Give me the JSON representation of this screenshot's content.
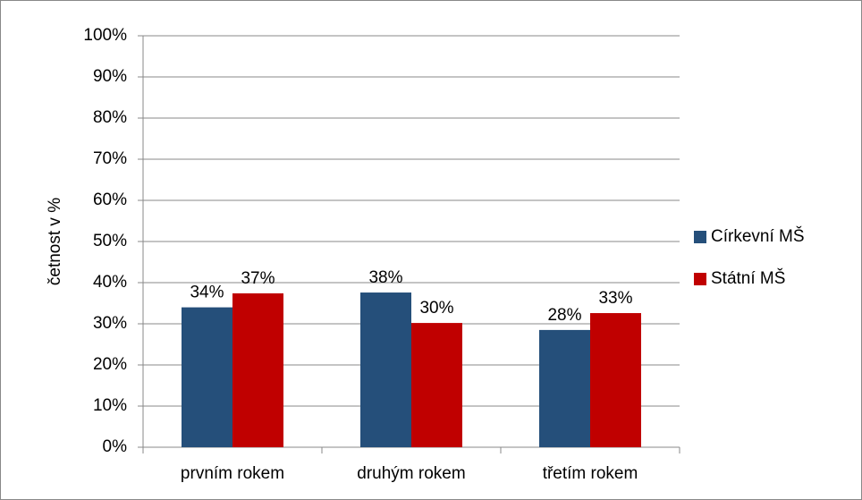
{
  "chart_data": {
    "type": "bar",
    "y_label": "četnost v %",
    "categories": [
      "prvním rokem",
      "druhým rokem",
      "třetím rokem"
    ],
    "series": [
      {
        "name": "Církevní MŠ",
        "color": "#254f7a",
        "values": [
          34,
          37.6,
          28.5
        ],
        "value_labels": [
          "34%",
          "38%",
          "28%"
        ]
      },
      {
        "name": "Státní MŠ",
        "color": "#c00000",
        "values": [
          37.4,
          30.2,
          32.6
        ],
        "value_labels": [
          "37%",
          "30%",
          "33%"
        ]
      }
    ],
    "ylim": [
      0,
      100
    ],
    "yticks": [
      {
        "value": 0,
        "label": "0%"
      },
      {
        "value": 10,
        "label": "10%"
      },
      {
        "value": 20,
        "label": "20%"
      },
      {
        "value": 30,
        "label": "30%"
      },
      {
        "value": 40,
        "label": "40%"
      },
      {
        "value": 50,
        "label": "50%"
      },
      {
        "value": 60,
        "label": "60%"
      },
      {
        "value": 70,
        "label": "70%"
      },
      {
        "value": 80,
        "label": "80%"
      },
      {
        "value": 90,
        "label": "90%"
      },
      {
        "value": 100,
        "label": "100%"
      }
    ],
    "grid": true,
    "legend": "right"
  }
}
